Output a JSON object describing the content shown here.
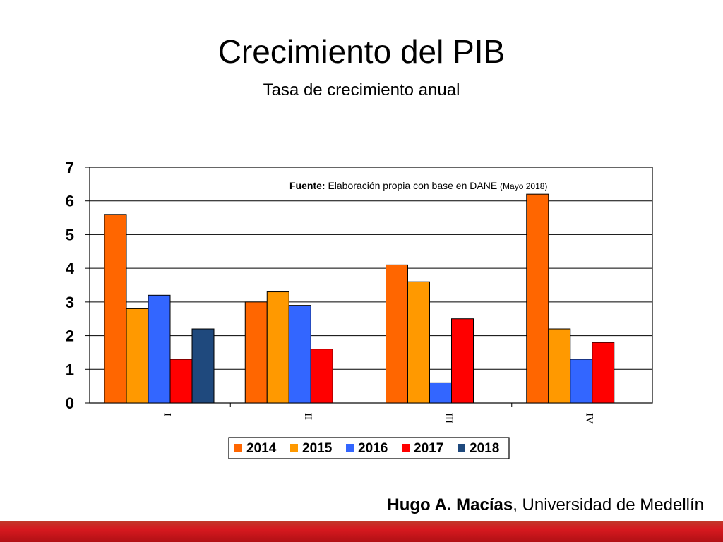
{
  "slide": {
    "title": "Crecimiento del PIB",
    "subtitle": "Tasa de crecimiento anual",
    "author_name": "Hugo A. Macías",
    "author_affiliation": ", Universidad de Medellín",
    "source_label": "Fuente:",
    "source_text": " Elaboración propia con base en DANE ",
    "source_date": "(Mayo 2018)"
  },
  "colors": {
    "bottom_bar": "#d7191f"
  },
  "chart_data": {
    "type": "bar",
    "categories": [
      "I",
      "II",
      "III",
      "IV"
    ],
    "series": [
      {
        "name": "2014",
        "color": "#ff6600",
        "values": [
          5.6,
          3.0,
          4.1,
          6.2
        ]
      },
      {
        "name": "2015",
        "color": "#ff9900",
        "values": [
          2.8,
          3.3,
          3.6,
          2.2
        ]
      },
      {
        "name": "2016",
        "color": "#3366ff",
        "values": [
          3.2,
          2.9,
          0.6,
          1.3
        ]
      },
      {
        "name": "2017",
        "color": "#ff0000",
        "values": [
          1.3,
          1.6,
          2.5,
          1.8
        ]
      },
      {
        "name": "2018",
        "color": "#1f497d",
        "values": [
          2.2,
          null,
          null,
          null
        ]
      }
    ],
    "ylim": [
      0,
      7
    ],
    "yticks": [
      0,
      1,
      2,
      3,
      4,
      5,
      6,
      7
    ],
    "grid": true,
    "legend": "bottom"
  }
}
